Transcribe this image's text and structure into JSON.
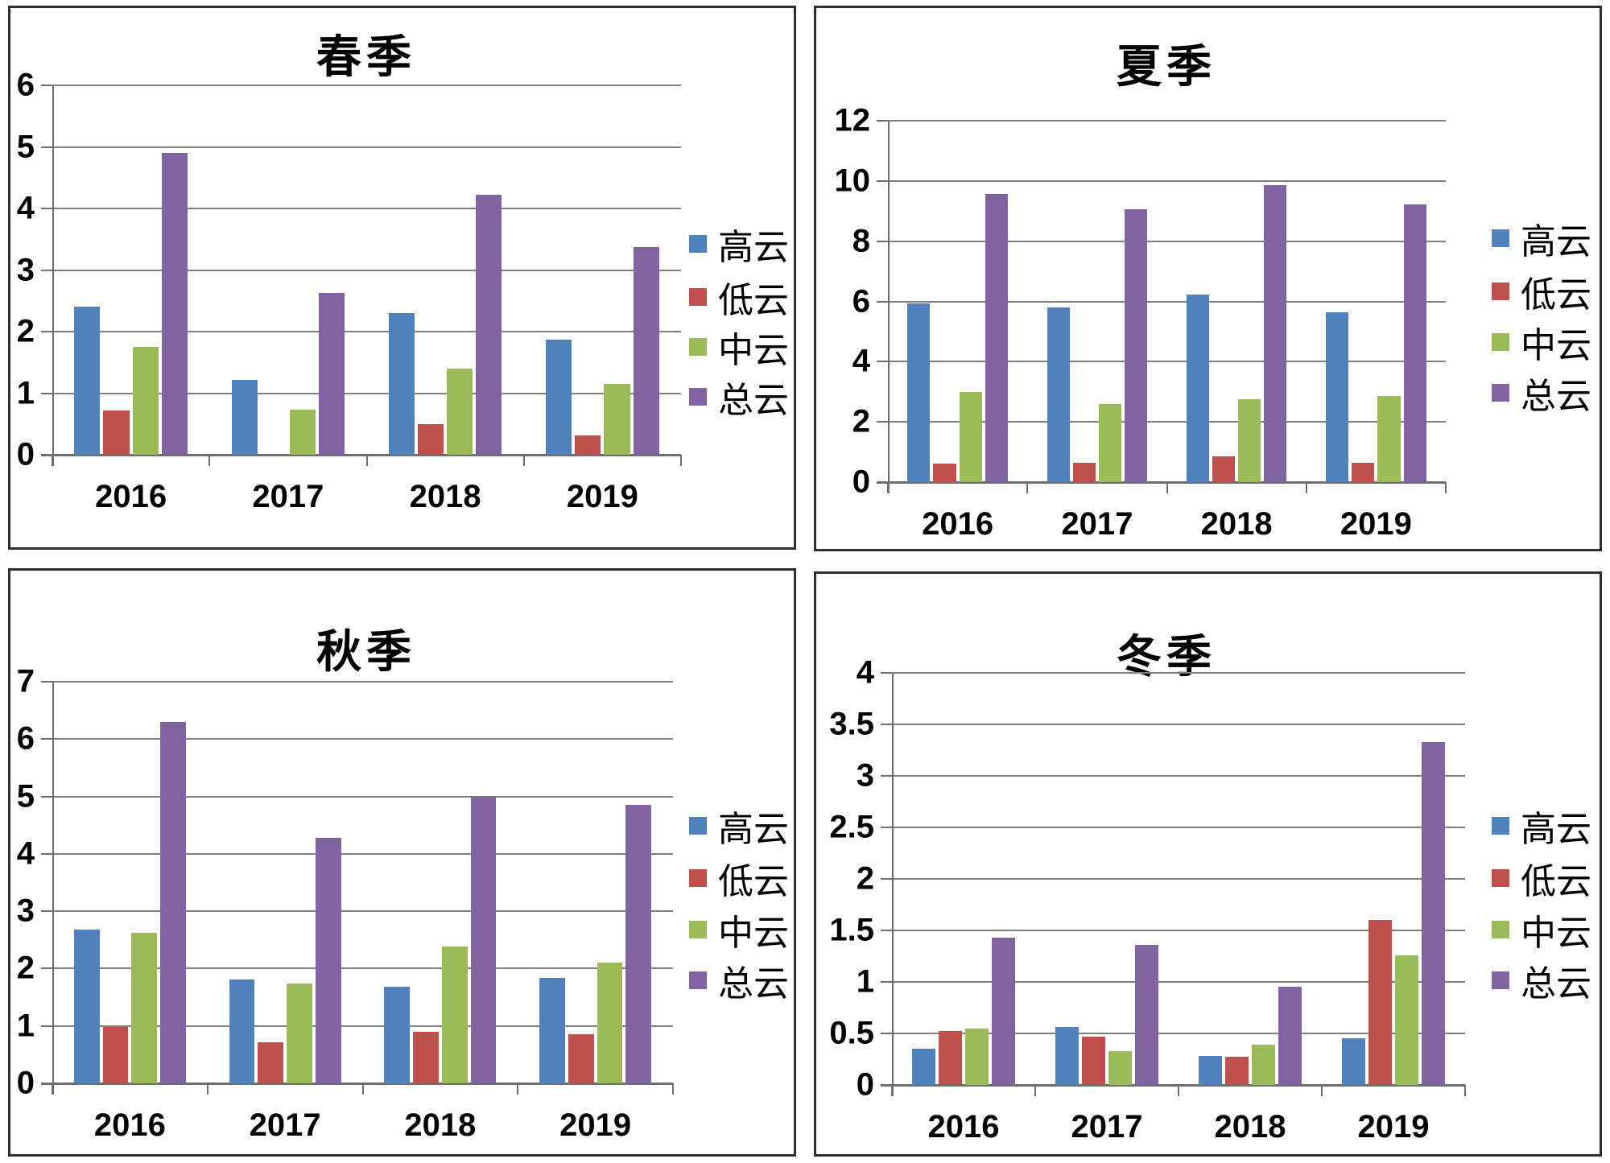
{
  "page": {
    "background": "#ffffff",
    "grid_color": "#7f7f7f",
    "axis_color": "#6e6e6e",
    "text_color": "#000000"
  },
  "chart_data": [
    {
      "type": "bar",
      "title": "春季",
      "categories": [
        "2016",
        "2017",
        "2018",
        "2019"
      ],
      "series": [
        {
          "name": "高云",
          "color": "#4F81BD",
          "values": [
            2.4,
            1.22,
            2.3,
            1.87
          ]
        },
        {
          "name": "低云",
          "color": "#C0504D",
          "values": [
            0.72,
            0.0,
            0.5,
            0.31
          ]
        },
        {
          "name": "中云",
          "color": "#9BBB59",
          "values": [
            1.75,
            0.73,
            1.4,
            1.15
          ]
        },
        {
          "name": "总云",
          "color": "#8064A2",
          "values": [
            4.9,
            2.63,
            4.22,
            3.37
          ]
        }
      ],
      "xlabel": "",
      "ylabel": "",
      "ylim": [
        0,
        6
      ],
      "ytick_step": 1,
      "grid": true,
      "legend_position": "right",
      "legend": [
        "高云",
        "低云",
        "中云",
        "总云"
      ]
    },
    {
      "type": "bar",
      "title": "夏季",
      "categories": [
        "2016",
        "2017",
        "2018",
        "2019"
      ],
      "series": [
        {
          "name": "高云",
          "color": "#4F81BD",
          "values": [
            5.92,
            5.8,
            6.22,
            5.65
          ]
        },
        {
          "name": "低云",
          "color": "#C0504D",
          "values": [
            0.62,
            0.63,
            0.85,
            0.65
          ]
        },
        {
          "name": "中云",
          "color": "#9BBB59",
          "values": [
            3.0,
            2.6,
            2.75,
            2.87
          ]
        },
        {
          "name": "总云",
          "color": "#8064A2",
          "values": [
            9.57,
            9.05,
            9.85,
            9.23
          ]
        }
      ],
      "xlabel": "",
      "ylabel": "",
      "ylim": [
        0,
        12
      ],
      "ytick_step": 2,
      "grid": true,
      "legend_position": "right",
      "legend": [
        "高云",
        "低云",
        "中云",
        "总云"
      ]
    },
    {
      "type": "bar",
      "title": "秋季",
      "categories": [
        "2016",
        "2017",
        "2018",
        "2019"
      ],
      "series": [
        {
          "name": "高云",
          "color": "#4F81BD",
          "values": [
            2.68,
            1.81,
            1.69,
            1.84
          ]
        },
        {
          "name": "低云",
          "color": "#C0504D",
          "values": [
            0.98,
            0.71,
            0.9,
            0.86
          ]
        },
        {
          "name": "中云",
          "color": "#9BBB59",
          "values": [
            2.62,
            1.74,
            2.39,
            2.11
          ]
        },
        {
          "name": "总云",
          "color": "#8064A2",
          "values": [
            6.3,
            4.28,
            5.0,
            4.85
          ]
        }
      ],
      "xlabel": "",
      "ylabel": "",
      "ylim": [
        0,
        7
      ],
      "ytick_step": 1,
      "grid": true,
      "legend_position": "right",
      "legend": [
        "高云",
        "低云",
        "中云",
        "总云"
      ]
    },
    {
      "type": "bar",
      "title": "冬季",
      "categories": [
        "2016",
        "2017",
        "2018",
        "2019"
      ],
      "series": [
        {
          "name": "高云",
          "color": "#4F81BD",
          "values": [
            0.35,
            0.56,
            0.28,
            0.45
          ]
        },
        {
          "name": "低云",
          "color": "#C0504D",
          "values": [
            0.52,
            0.47,
            0.27,
            1.6
          ]
        },
        {
          "name": "中云",
          "color": "#9BBB59",
          "values": [
            0.55,
            0.33,
            0.39,
            1.26
          ]
        },
        {
          "name": "总云",
          "color": "#8064A2",
          "values": [
            1.43,
            1.36,
            0.95,
            3.33
          ]
        }
      ],
      "xlabel": "",
      "ylabel": "",
      "ylim": [
        0,
        4
      ],
      "ytick_step": 0.5,
      "grid": true,
      "legend_position": "right",
      "legend": [
        "高云",
        "低云",
        "中云",
        "总云"
      ]
    }
  ]
}
